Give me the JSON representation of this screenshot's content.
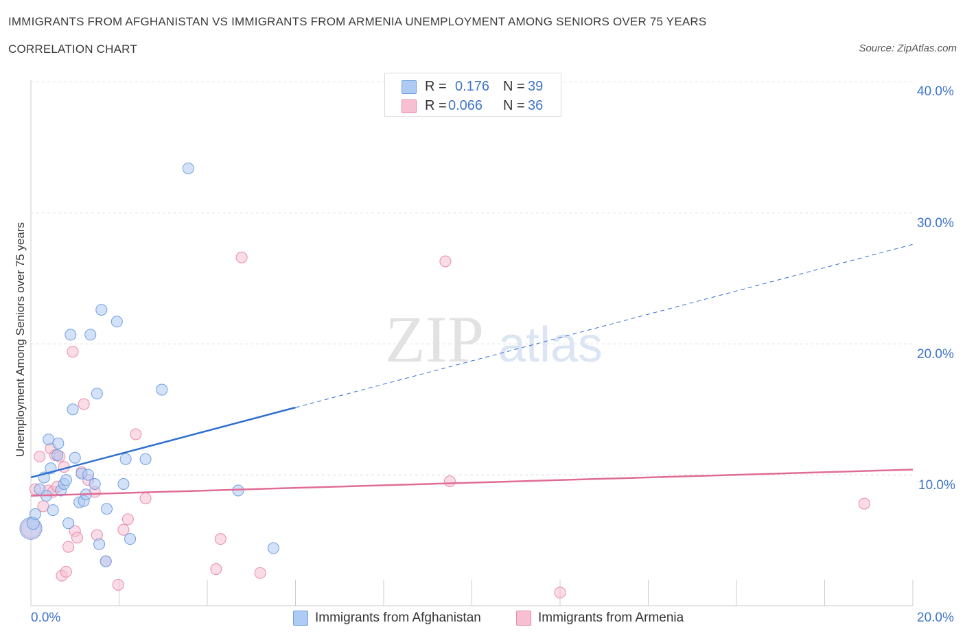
{
  "header": {
    "title": "IMMIGRANTS FROM AFGHANISTAN VS IMMIGRANTS FROM ARMENIA UNEMPLOYMENT AMONG SENIORS OVER 75 YEARS",
    "subtitle": "CORRELATION CHART",
    "source": "Source: ZipAtlas.com"
  },
  "watermark": {
    "zip": "ZIP",
    "atlas": "atlas"
  },
  "legend": {
    "afghanistan": {
      "r_label": "R =",
      "r_value": "0.176",
      "n_label": "N =",
      "n_value": "39"
    },
    "armenia": {
      "r_label": "R =",
      "r_value": "0.066",
      "n_label": "N =",
      "n_value": "36"
    }
  },
  "colors": {
    "afghanistan_fill": "#aecbf3",
    "afghanistan_stroke": "#6f9ee0",
    "afghanistan_line": "#2f6fce",
    "armenia_fill": "#f6c0d2",
    "armenia_stroke": "#e98aaa",
    "armenia_line": "#e06c96",
    "grid": "#dddddd",
    "axis_text": "#3e74c9"
  },
  "chart_data": {
    "type": "scatter",
    "title": "IMMIGRANTS FROM AFGHANISTAN VS IMMIGRANTS FROM ARMENIA UNEMPLOYMENT AMONG SENIORS OVER 75 YEARS",
    "xlabel": "",
    "ylabel": "Unemployment Among Seniors over 75 years",
    "xlim": [
      0,
      20
    ],
    "ylim": [
      0,
      40
    ],
    "x_tick_labels": [
      "0.0%",
      "20.0%"
    ],
    "y_tick_labels": [
      "10.0%",
      "20.0%",
      "30.0%",
      "40.0%"
    ],
    "y_ticks": [
      10,
      20,
      30,
      40
    ],
    "grid": true,
    "series": [
      {
        "name": "Immigrants from Afghanistan",
        "r": 0.176,
        "n": 39,
        "trend": {
          "x0": 0.0,
          "y0": 9.8,
          "x_solid_end": 6.0,
          "x1": 20.0,
          "y1": 27.6
        },
        "points": [
          {
            "x": 0.0,
            "y": 5.9,
            "s": 16
          },
          {
            "x": 0.05,
            "y": 6.3,
            "s": 9
          },
          {
            "x": 0.1,
            "y": 7.0,
            "s": 8
          },
          {
            "x": 0.2,
            "y": 8.9,
            "s": 8
          },
          {
            "x": 0.3,
            "y": 9.8,
            "s": 8
          },
          {
            "x": 0.35,
            "y": 8.4,
            "s": 8
          },
          {
            "x": 0.4,
            "y": 12.7,
            "s": 8
          },
          {
            "x": 0.45,
            "y": 10.5,
            "s": 8
          },
          {
            "x": 0.5,
            "y": 7.3,
            "s": 8
          },
          {
            "x": 0.6,
            "y": 11.5,
            "s": 8
          },
          {
            "x": 0.62,
            "y": 12.4,
            "s": 8
          },
          {
            "x": 0.68,
            "y": 8.8,
            "s": 8
          },
          {
            "x": 0.75,
            "y": 9.3,
            "s": 8
          },
          {
            "x": 0.8,
            "y": 9.6,
            "s": 8
          },
          {
            "x": 0.85,
            "y": 6.3,
            "s": 8
          },
          {
            "x": 0.9,
            "y": 20.7,
            "s": 8
          },
          {
            "x": 0.95,
            "y": 15.0,
            "s": 8
          },
          {
            "x": 1.0,
            "y": 11.3,
            "s": 8
          },
          {
            "x": 1.1,
            "y": 7.9,
            "s": 8
          },
          {
            "x": 1.15,
            "y": 10.1,
            "s": 8
          },
          {
            "x": 1.2,
            "y": 8.0,
            "s": 8
          },
          {
            "x": 1.25,
            "y": 8.5,
            "s": 8
          },
          {
            "x": 1.3,
            "y": 10.0,
            "s": 8
          },
          {
            "x": 1.35,
            "y": 20.7,
            "s": 8
          },
          {
            "x": 1.45,
            "y": 9.3,
            "s": 8
          },
          {
            "x": 1.5,
            "y": 16.2,
            "s": 8
          },
          {
            "x": 1.55,
            "y": 4.7,
            "s": 8
          },
          {
            "x": 1.6,
            "y": 22.6,
            "s": 8
          },
          {
            "x": 1.7,
            "y": 3.4,
            "s": 8
          },
          {
            "x": 1.72,
            "y": 7.4,
            "s": 8
          },
          {
            "x": 1.95,
            "y": 21.7,
            "s": 8
          },
          {
            "x": 2.1,
            "y": 9.3,
            "s": 8
          },
          {
            "x": 2.15,
            "y": 11.2,
            "s": 8
          },
          {
            "x": 2.25,
            "y": 5.1,
            "s": 8
          },
          {
            "x": 2.6,
            "y": 11.2,
            "s": 8
          },
          {
            "x": 2.97,
            "y": 16.5,
            "s": 8
          },
          {
            "x": 3.57,
            "y": 33.4,
            "s": 8
          },
          {
            "x": 4.7,
            "y": 8.8,
            "s": 8
          },
          {
            "x": 5.5,
            "y": 4.4,
            "s": 8
          }
        ]
      },
      {
        "name": "Immigrants from Armenia",
        "r": 0.066,
        "n": 36,
        "trend": {
          "x0": 0.0,
          "y0": 8.4,
          "x1": 20.0,
          "y1": 10.4
        },
        "points": [
          {
            "x": 0.0,
            "y": 5.9,
            "s": 14
          },
          {
            "x": 0.1,
            "y": 8.9,
            "s": 8
          },
          {
            "x": 0.2,
            "y": 11.4,
            "s": 8
          },
          {
            "x": 0.28,
            "y": 7.6,
            "s": 8
          },
          {
            "x": 0.4,
            "y": 8.8,
            "s": 8
          },
          {
            "x": 0.45,
            "y": 12.0,
            "s": 8
          },
          {
            "x": 0.5,
            "y": 8.7,
            "s": 8
          },
          {
            "x": 0.55,
            "y": 11.5,
            "s": 8
          },
          {
            "x": 0.6,
            "y": 9.1,
            "s": 8
          },
          {
            "x": 0.65,
            "y": 11.4,
            "s": 8
          },
          {
            "x": 0.7,
            "y": 2.3,
            "s": 8
          },
          {
            "x": 0.75,
            "y": 10.6,
            "s": 8
          },
          {
            "x": 0.8,
            "y": 2.6,
            "s": 8
          },
          {
            "x": 0.85,
            "y": 4.5,
            "s": 8
          },
          {
            "x": 0.95,
            "y": 19.4,
            "s": 8
          },
          {
            "x": 1.0,
            "y": 5.7,
            "s": 8
          },
          {
            "x": 1.05,
            "y": 5.2,
            "s": 8
          },
          {
            "x": 1.15,
            "y": 10.2,
            "s": 8
          },
          {
            "x": 1.2,
            "y": 15.4,
            "s": 8
          },
          {
            "x": 1.3,
            "y": 9.6,
            "s": 8
          },
          {
            "x": 1.45,
            "y": 8.7,
            "s": 8
          },
          {
            "x": 1.5,
            "y": 5.4,
            "s": 8
          },
          {
            "x": 1.7,
            "y": 3.4,
            "s": 8
          },
          {
            "x": 1.98,
            "y": 1.6,
            "s": 8
          },
          {
            "x": 2.1,
            "y": 5.8,
            "s": 8
          },
          {
            "x": 2.2,
            "y": 6.6,
            "s": 8
          },
          {
            "x": 2.38,
            "y": 13.1,
            "s": 8
          },
          {
            "x": 2.6,
            "y": 8.2,
            "s": 8
          },
          {
            "x": 4.2,
            "y": 2.8,
            "s": 8
          },
          {
            "x": 4.3,
            "y": 5.1,
            "s": 8
          },
          {
            "x": 4.78,
            "y": 26.6,
            "s": 8
          },
          {
            "x": 5.2,
            "y": 2.5,
            "s": 8
          },
          {
            "x": 9.5,
            "y": 9.5,
            "s": 8
          },
          {
            "x": 9.4,
            "y": 26.3,
            "s": 8
          },
          {
            "x": 12.0,
            "y": 1.0,
            "s": 8
          },
          {
            "x": 18.9,
            "y": 7.8,
            "s": 8
          }
        ]
      }
    ]
  }
}
